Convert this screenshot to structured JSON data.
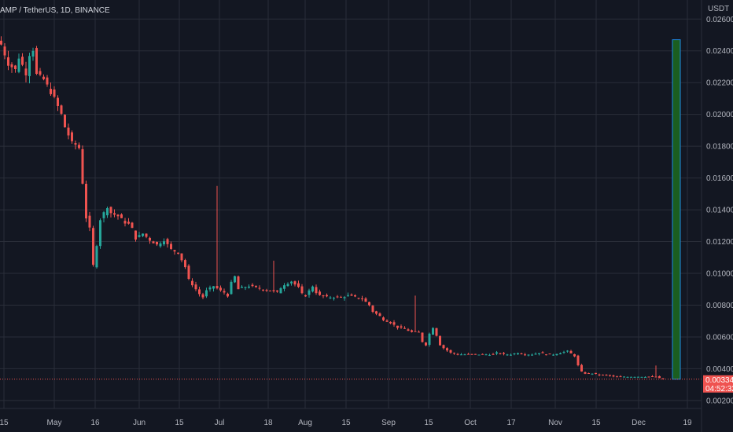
{
  "header": {
    "symbol_line": "AMP / TetherUS, 1D, BINANCE"
  },
  "axis": {
    "currency_label": "USDT"
  },
  "colors": {
    "background": "#131722",
    "grid": "#2a2e39",
    "up": "#26a69a",
    "down": "#ef5350",
    "target_box": "#1b5e20",
    "target_border": "#1e88e5",
    "price_badge": "#ef5350",
    "text": "#b2b5be"
  },
  "price_badge": {
    "price": "0.00334",
    "countdown": "04:52:32"
  },
  "chart_data": {
    "type": "candlestick",
    "y_axis": {
      "min": 0.0015,
      "max": 0.0272,
      "ticks": [
        "0.02600",
        "0.02400",
        "0.02200",
        "0.02000",
        "0.01800",
        "0.01600",
        "0.01400",
        "0.01200",
        "0.01000",
        "0.00800",
        "0.00600",
        "0.00400",
        "0.00200"
      ]
    },
    "x_axis": {
      "ticks": [
        "15",
        "May",
        "16",
        "Jun",
        "15",
        "Jul",
        "18",
        "Aug",
        "15",
        "Sep",
        "15",
        "Oct",
        "17",
        "Nov",
        "15",
        "Dec",
        "19"
      ]
    },
    "series": [
      {
        "close_path": [
          [
            0,
            0.0244
          ],
          [
            2,
            0.0232
          ],
          [
            4,
            0.0228
          ],
          [
            5,
            0.0236
          ],
          [
            7,
            0.0226
          ],
          [
            8,
            0.0238
          ],
          [
            9,
            0.0241
          ],
          [
            10,
            0.0225
          ],
          [
            12,
            0.0222
          ],
          [
            14,
            0.0214
          ],
          [
            15,
            0.021
          ],
          [
            17,
            0.02
          ],
          [
            18,
            0.0192
          ],
          [
            19,
            0.0187
          ],
          [
            20,
            0.0182
          ],
          [
            21,
            0.0181
          ],
          [
            22,
            0.0179
          ],
          [
            24,
            0.0135
          ],
          [
            25,
            0.0128
          ],
          [
            26,
            0.0105
          ],
          [
            27,
            0.0118
          ],
          [
            28,
            0.0134
          ],
          [
            30,
            0.0142
          ],
          [
            31,
            0.0138
          ],
          [
            33,
            0.0136
          ],
          [
            35,
            0.0132
          ],
          [
            36,
            0.0131
          ],
          [
            37,
            0.0128
          ],
          [
            38,
            0.0122
          ],
          [
            40,
            0.0125
          ],
          [
            42,
            0.0121
          ],
          [
            44,
            0.0118
          ],
          [
            46,
            0.0121
          ],
          [
            48,
            0.0115
          ],
          [
            50,
            0.0113
          ],
          [
            52,
            0.0104
          ],
          [
            53,
            0.0096
          ],
          [
            55,
            0.009
          ],
          [
            56,
            0.0087
          ],
          [
            57,
            0.0085
          ],
          [
            58,
            0.0089
          ],
          [
            60,
            0.0092
          ],
          [
            62,
            0.0089
          ],
          [
            63,
            0.0088
          ],
          [
            64,
            0.0086
          ],
          [
            65,
            0.0094
          ],
          [
            66,
            0.0098
          ],
          [
            67,
            0.009
          ],
          [
            68,
            0.0091
          ],
          [
            70,
            0.0092
          ],
          [
            72,
            0.0091
          ],
          [
            74,
            0.009
          ],
          [
            76,
            0.0089
          ],
          [
            78,
            0.0088
          ],
          [
            79,
            0.0091
          ],
          [
            80,
            0.0093
          ],
          [
            82,
            0.0095
          ],
          [
            84,
            0.0091
          ],
          [
            85,
            0.0087
          ],
          [
            86,
            0.0086
          ],
          [
            87,
            0.0089
          ],
          [
            88,
            0.0092
          ],
          [
            89,
            0.0088
          ],
          [
            90,
            0.0086
          ],
          [
            92,
            0.0085
          ],
          [
            94,
            0.0085
          ],
          [
            96,
            0.0085
          ],
          [
            98,
            0.0086
          ],
          [
            100,
            0.0085
          ],
          [
            102,
            0.0084
          ],
          [
            104,
            0.008
          ],
          [
            105,
            0.0076
          ],
          [
            107,
            0.0073
          ],
          [
            108,
            0.0071
          ],
          [
            110,
            0.0069
          ],
          [
            112,
            0.0066
          ],
          [
            114,
            0.0065
          ],
          [
            116,
            0.0063
          ],
          [
            118,
            0.0063
          ],
          [
            119,
            0.0057
          ],
          [
            120,
            0.0055
          ],
          [
            121,
            0.0062
          ],
          [
            122,
            0.0066
          ],
          [
            123,
            0.0061
          ],
          [
            124,
            0.0055
          ],
          [
            125,
            0.0053
          ],
          [
            127,
            0.005
          ],
          [
            129,
            0.0049
          ],
          [
            131,
            0.0049
          ],
          [
            133,
            0.0049
          ],
          [
            135,
            0.0049
          ],
          [
            137,
            0.0049
          ],
          [
            139,
            0.0049
          ],
          [
            140,
            0.005
          ],
          [
            142,
            0.0049
          ],
          [
            144,
            0.0049
          ],
          [
            146,
            0.005
          ],
          [
            148,
            0.0049
          ],
          [
            150,
            0.0049
          ],
          [
            152,
            0.005
          ],
          [
            154,
            0.0049
          ],
          [
            156,
            0.0049
          ],
          [
            158,
            0.005
          ],
          [
            160,
            0.0051
          ],
          [
            162,
            0.0048
          ],
          [
            163,
            0.0042
          ],
          [
            164,
            0.0038
          ],
          [
            165,
            0.0037
          ],
          [
            167,
            0.0037
          ],
          [
            169,
            0.0036
          ],
          [
            171,
            0.0036
          ],
          [
            173,
            0.0035
          ],
          [
            175,
            0.0035
          ],
          [
            177,
            0.0035
          ],
          [
            179,
            0.0035
          ],
          [
            181,
            0.0035
          ],
          [
            183,
            0.0035
          ],
          [
            185,
            0.0035
          ],
          [
            186,
            0.0034
          ],
          [
            187,
            0.00334
          ]
        ]
      }
    ],
    "spikes": [
      {
        "index": 61,
        "high": 0.0155
      },
      {
        "index": 77,
        "high": 0.0108
      },
      {
        "index": 117,
        "high": 0.0086
      },
      {
        "index": 185,
        "high": 0.0042
      }
    ],
    "target_zone": {
      "bottom": 0.00334,
      "top": 0.0247
    },
    "last_price": 0.00334
  }
}
